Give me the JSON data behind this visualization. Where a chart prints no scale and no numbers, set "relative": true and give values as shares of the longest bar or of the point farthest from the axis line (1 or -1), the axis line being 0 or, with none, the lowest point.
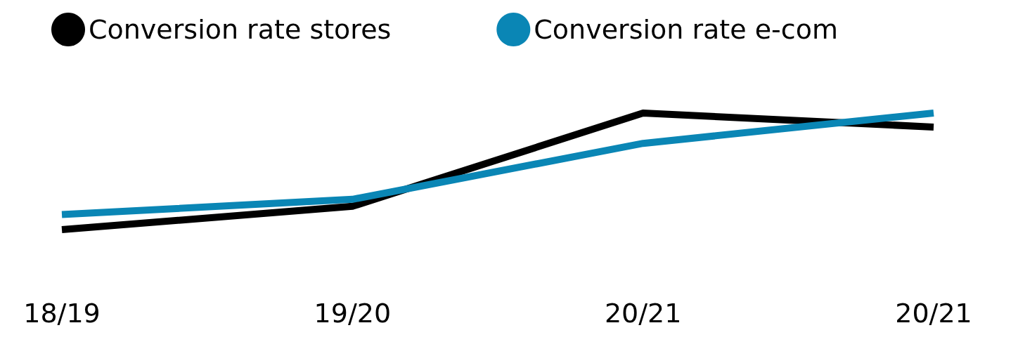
{
  "chart_data": {
    "type": "line",
    "relative": true,
    "categories": [
      "18/19",
      "19/20",
      "20/21",
      "20/21"
    ],
    "series": [
      {
        "name": "Conversion rate stores",
        "color": "#000000",
        "values": [
          0,
          0.2,
          1,
          0.88
        ]
      },
      {
        "name": "Conversion rate e-com",
        "color": "#0a86b5",
        "values": [
          0.13,
          0.26,
          0.74,
          1
        ]
      }
    ],
    "legend": "top",
    "marker": "none",
    "line_style": "solid",
    "grid": false
  }
}
